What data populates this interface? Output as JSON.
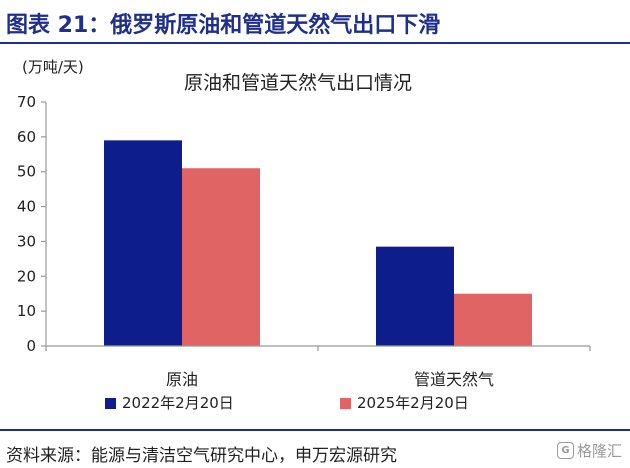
{
  "header": {
    "title": "图表 21：俄罗斯原油和管道天然气出口下滑"
  },
  "footer": {
    "source": "资料来源：能源与清洁空气研究中心，申万宏源研究",
    "watermark": "格隆汇",
    "watermark_logo": "G"
  },
  "colors": {
    "header": "#1f2f8c",
    "series_2022": "#0d1e8c",
    "series_2025": "#e06464"
  },
  "chart_data": {
    "type": "bar",
    "title": "原油和管道天然气出口情况",
    "unit": "(万吨/天)",
    "categories": [
      "原油",
      "管道天然气"
    ],
    "series": [
      {
        "name": "2022年2月20日",
        "values": [
          59,
          28.5
        ]
      },
      {
        "name": "2025年2月20日",
        "values": [
          51,
          15
        ]
      }
    ],
    "ylim": [
      0,
      70
    ],
    "yticks": [
      0,
      10,
      20,
      30,
      40,
      50,
      60,
      70
    ],
    "legend": "bottom"
  }
}
